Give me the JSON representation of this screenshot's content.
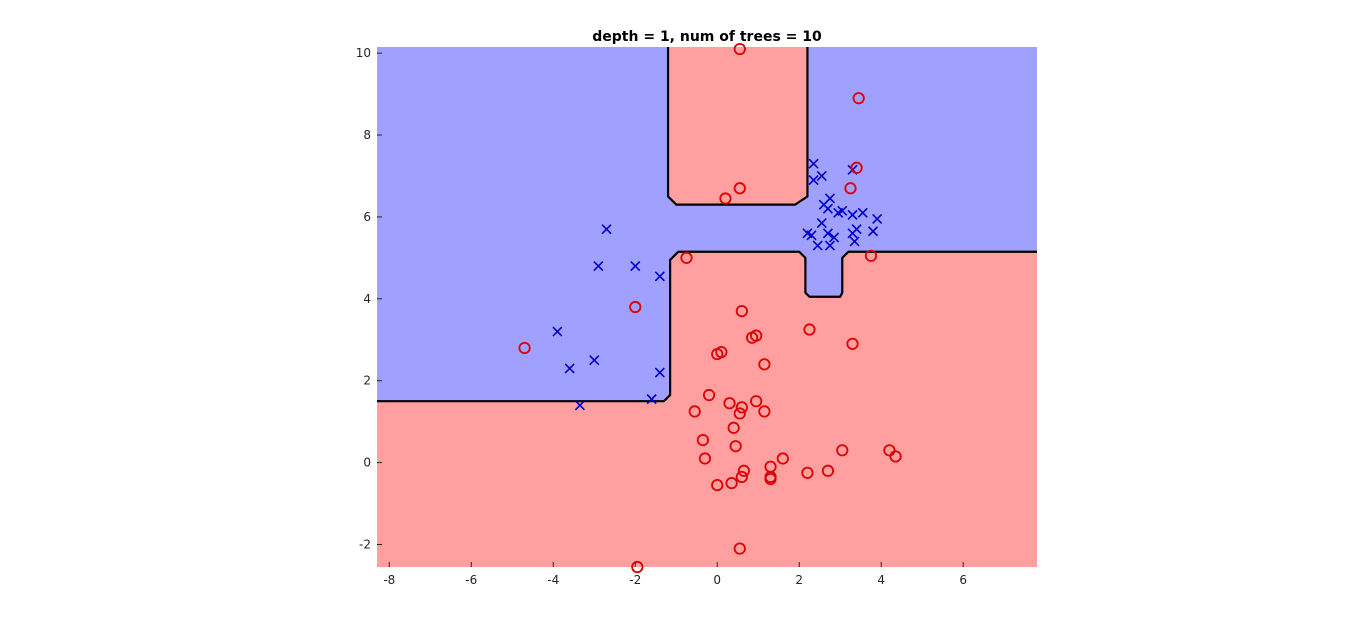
{
  "chart_data": {
    "type": "scatter",
    "title": "depth = 1, num of trees = 10",
    "xlabel": "",
    "ylabel": "",
    "xlim": [
      -8.3,
      7.8
    ],
    "ylim": [
      -2.55,
      10.15
    ],
    "x_ticks": [
      -8,
      -6,
      -4,
      -2,
      0,
      2,
      4,
      6
    ],
    "y_ticks": [
      -2,
      0,
      2,
      4,
      6,
      8,
      10
    ],
    "grid": false,
    "legend": false,
    "colors": {
      "class_x_region": "#a0a0ff",
      "class_o_region": "#ff9f9f",
      "boundary": "#000000",
      "class_x_marker": "#0000cc",
      "class_o_marker": "#dd0000"
    },
    "series": [
      {
        "marker": "x",
        "color": "#0000cc",
        "points": [
          [
            -2.7,
            5.7
          ],
          [
            -2.9,
            4.8
          ],
          [
            -2.0,
            4.8
          ],
          [
            -1.4,
            4.55
          ],
          [
            -3.9,
            3.2
          ],
          [
            -3.0,
            2.5
          ],
          [
            -3.6,
            2.3
          ],
          [
            -1.4,
            2.2
          ],
          [
            -3.35,
            1.4
          ],
          [
            -1.6,
            1.55
          ],
          [
            2.35,
            7.3
          ],
          [
            2.35,
            6.9
          ],
          [
            2.55,
            7.0
          ],
          [
            3.3,
            7.15
          ],
          [
            2.75,
            6.45
          ],
          [
            2.6,
            6.3
          ],
          [
            2.7,
            6.2
          ],
          [
            2.95,
            6.1
          ],
          [
            3.05,
            6.15
          ],
          [
            3.3,
            6.05
          ],
          [
            3.55,
            6.1
          ],
          [
            3.9,
            5.95
          ],
          [
            2.55,
            5.85
          ],
          [
            2.2,
            5.6
          ],
          [
            2.3,
            5.55
          ],
          [
            2.7,
            5.6
          ],
          [
            2.85,
            5.5
          ],
          [
            3.3,
            5.6
          ],
          [
            3.4,
            5.7
          ],
          [
            3.8,
            5.65
          ],
          [
            2.45,
            5.3
          ],
          [
            2.75,
            5.3
          ],
          [
            3.35,
            5.4
          ]
        ]
      },
      {
        "marker": "o",
        "color": "#dd0000",
        "points": [
          [
            0.55,
            10.1
          ],
          [
            3.45,
            8.9
          ],
          [
            3.4,
            7.2
          ],
          [
            3.25,
            6.7
          ],
          [
            0.55,
            6.7
          ],
          [
            0.2,
            6.45
          ],
          [
            -0.75,
            5.0
          ],
          [
            3.75,
            5.05
          ],
          [
            -2.0,
            3.8
          ],
          [
            0.6,
            3.7
          ],
          [
            2.25,
            3.25
          ],
          [
            0.85,
            3.05
          ],
          [
            0.95,
            3.1
          ],
          [
            1.15,
            2.4
          ],
          [
            3.3,
            2.9
          ],
          [
            0.0,
            2.65
          ],
          [
            0.1,
            2.7
          ],
          [
            -4.7,
            2.8
          ],
          [
            -0.2,
            1.65
          ],
          [
            -0.55,
            1.25
          ],
          [
            0.3,
            1.45
          ],
          [
            0.6,
            1.35
          ],
          [
            0.55,
            1.2
          ],
          [
            0.95,
            1.5
          ],
          [
            1.15,
            1.25
          ],
          [
            0.4,
            0.85
          ],
          [
            -0.35,
            0.55
          ],
          [
            0.45,
            0.4
          ],
          [
            -0.3,
            0.1
          ],
          [
            1.6,
            0.1
          ],
          [
            3.05,
            0.3
          ],
          [
            4.2,
            0.3
          ],
          [
            4.35,
            0.15
          ],
          [
            1.3,
            -0.1
          ],
          [
            0.65,
            -0.2
          ],
          [
            2.7,
            -0.2
          ],
          [
            2.2,
            -0.25
          ],
          [
            0.6,
            -0.35
          ],
          [
            1.3,
            -0.35
          ],
          [
            1.3,
            -0.4
          ],
          [
            0.35,
            -0.5
          ],
          [
            0.0,
            -0.55
          ],
          [
            0.55,
            -2.1
          ],
          [
            -1.95,
            -2.55
          ]
        ]
      }
    ],
    "regions": {
      "description_free": true,
      "boundary_polylines": [
        [
          [
            -8.3,
            1.5
          ],
          [
            -1.3,
            1.5
          ],
          [
            -1.15,
            1.65
          ],
          [
            -1.15,
            4.95
          ],
          [
            -0.95,
            5.15
          ],
          [
            2.0,
            5.15
          ],
          [
            2.15,
            5.0
          ],
          [
            2.15,
            4.15
          ],
          [
            2.25,
            4.05
          ],
          [
            3.0,
            4.05
          ],
          [
            3.05,
            4.15
          ],
          [
            3.05,
            5.0
          ],
          [
            3.2,
            5.15
          ],
          [
            7.8,
            5.15
          ]
        ],
        [
          [
            -1.2,
            10.15
          ],
          [
            -1.2,
            6.5
          ],
          [
            -1.0,
            6.3
          ],
          [
            1.9,
            6.3
          ],
          [
            2.2,
            6.5
          ],
          [
            2.2,
            10.15
          ]
        ]
      ]
    }
  }
}
